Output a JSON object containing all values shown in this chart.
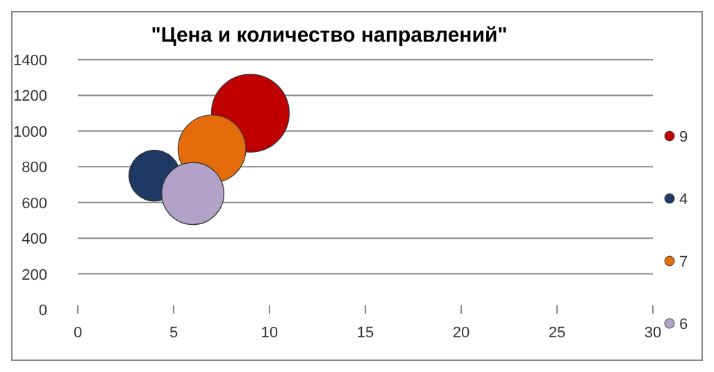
{
  "chart_data": {
    "type": "bubble",
    "title": "\"Цена и количество направлений\"",
    "series": [
      {
        "name": "9",
        "color": "#c00000",
        "x": [
          9
        ],
        "values": [
          1100
        ],
        "sizes": [
          1
        ]
      },
      {
        "name": "4",
        "color": "#1f3864",
        "x": [
          4
        ],
        "values": [
          750
        ],
        "sizes": [
          0.43
        ]
      },
      {
        "name": "7",
        "color": "#e46c0a",
        "x": [
          7
        ],
        "values": [
          900
        ],
        "sizes": [
          0.76
        ]
      },
      {
        "name": "6",
        "color": "#b3a2c7",
        "x": [
          6
        ],
        "values": [
          650
        ],
        "sizes": [
          0.64
        ]
      }
    ],
    "xlim": [
      0,
      30
    ],
    "xticks": [
      0,
      5,
      10,
      15,
      20,
      25,
      30
    ],
    "ylim": [
      0,
      1400
    ],
    "yticks": [
      0,
      200,
      400,
      600,
      800,
      1000,
      1200,
      1400
    ],
    "grid": "y",
    "legend": "right"
  }
}
